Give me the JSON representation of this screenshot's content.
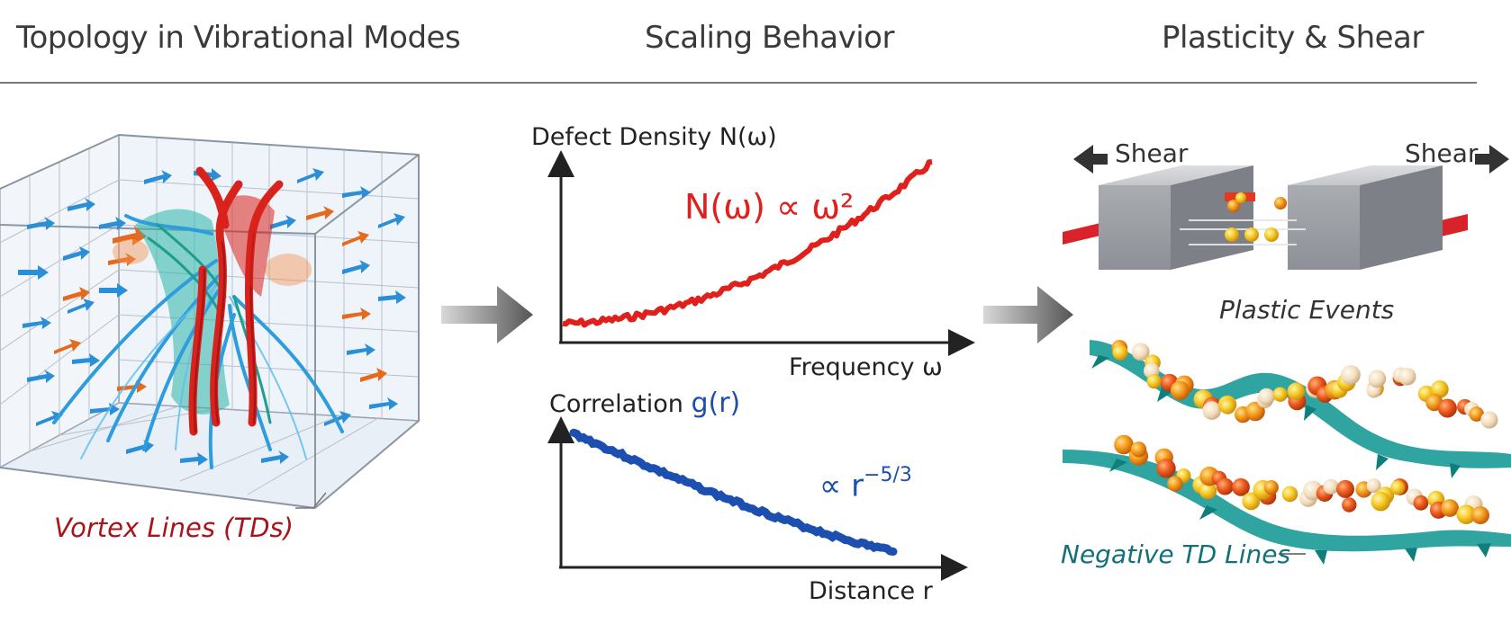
{
  "headers": {
    "topology": "Topology in Vibrational Modes",
    "scaling": "Scaling Behavior",
    "plasticity": "Plasticity & Shear"
  },
  "topology_panel": {
    "vortex_label": "Vortex Lines (TDs)"
  },
  "scaling_panel": {
    "top_plot": {
      "ylabel": "Defect Density N(ω)",
      "xlabel": "Frequency ω",
      "annotation": "N(ω) ∝ ω²"
    },
    "bottom_plot": {
      "ylabel_prefix": "Correlation ",
      "ylabel_symbol": "g(r)",
      "xlabel": "Distance r",
      "annotation": "∝ r",
      "annotation_exponent": "−5/3"
    }
  },
  "plasticity_panel": {
    "shear_left": "Shear",
    "shear_right": "Shear",
    "plastic_events_label": "Plastic Events",
    "td_lines_label": "Negative TD Lines"
  },
  "colors": {
    "red_curve": "#e0201c",
    "blue_curve": "#1d4fb0",
    "vortex_red": "#a8141c",
    "teal_label": "#12707a"
  }
}
